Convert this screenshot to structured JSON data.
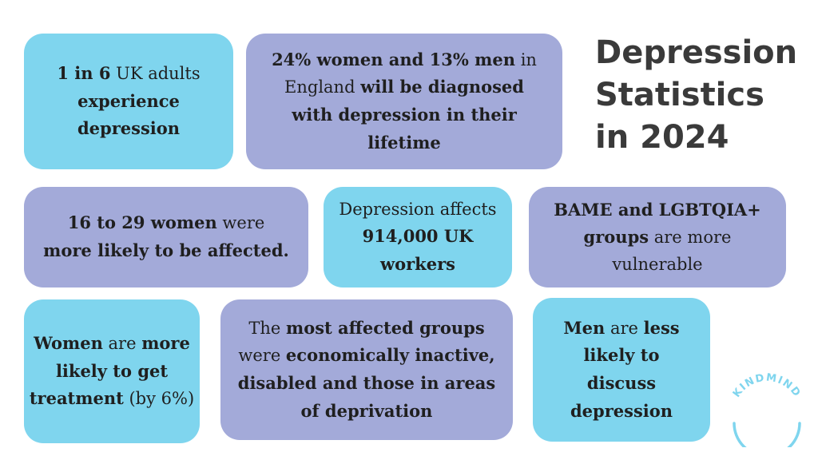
{
  "title": {
    "lines": [
      "Depression",
      "Statistics",
      "in 2024"
    ]
  },
  "cards": {
    "c1": {
      "p1": "1 in 6",
      "p2": " UK adults ",
      "p3": "experience depression"
    },
    "c2": {
      "p1": "24% women and 13% men",
      "p2": " in England ",
      "p3": "will be diagnosed with depression in their lifetime"
    },
    "c3": {
      "p1": "16 to 29 women",
      "p2": " were ",
      "p3": "more likely to be affected."
    },
    "c4": {
      "p1": "Depression affects ",
      "p2": "914,000 UK workers"
    },
    "c5": {
      "p1": "BAME and LGBTQIA+ groups",
      "p2": " are more vulnerable"
    },
    "c6": {
      "p1": "Women",
      "p2": " are ",
      "p3": "more likely to get treatment",
      "p4": " (by 6%)"
    },
    "c7": {
      "p1": "The ",
      "p2": "most affected groups",
      "p3": " were ",
      "p4": "economically inactive, disabled and those in areas of deprivation"
    },
    "c8": {
      "p1": "Men",
      "p2": " are ",
      "p3": "less likely to discuss depression"
    }
  },
  "logo": {
    "text": "KINDMIND"
  },
  "colors": {
    "cyan": "#7fd5ee",
    "lavender": "#a3aad9",
    "logo": "#7fd5ee",
    "title": "#3a3a3a"
  }
}
